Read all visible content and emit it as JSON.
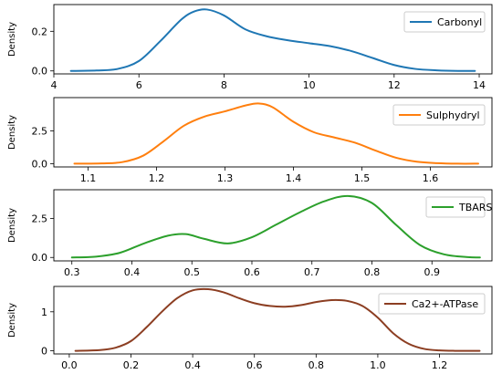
{
  "chart_data": [
    {
      "type": "line",
      "kind": "kernel density",
      "ylabel": "Density",
      "xlim": [
        4.0,
        14.3
      ],
      "ylim": [
        -0.015,
        0.335
      ],
      "xticks": [
        4,
        6,
        8,
        10,
        12,
        14
      ],
      "yticks": [
        0.0,
        0.2
      ],
      "ytick_labels": [
        "0.0",
        "0.2"
      ],
      "legend_position": "upper right",
      "series": [
        {
          "name": "Carbonyl",
          "color": "#1f77b4",
          "x": [
            4.4,
            5.0,
            5.5,
            6.0,
            6.5,
            7.0,
            7.3,
            7.6,
            8.0,
            8.5,
            9.0,
            9.5,
            10.0,
            10.5,
            11.0,
            11.5,
            12.0,
            12.5,
            13.0,
            13.5,
            13.9
          ],
          "y": [
            0.0,
            0.002,
            0.01,
            0.05,
            0.15,
            0.26,
            0.3,
            0.31,
            0.28,
            0.21,
            0.175,
            0.155,
            0.14,
            0.125,
            0.1,
            0.065,
            0.03,
            0.01,
            0.003,
            0.0,
            0.0
          ]
        }
      ]
    },
    {
      "type": "line",
      "kind": "kernel density",
      "ylabel": "Density",
      "xlim": [
        1.05,
        1.69
      ],
      "ylim": [
        -0.25,
        5.05
      ],
      "xticks": [
        1.1,
        1.2,
        1.3,
        1.4,
        1.5,
        1.6
      ],
      "yticks": [
        0.0,
        2.5
      ],
      "ytick_labels": [
        "0.0",
        "2.5"
      ],
      "legend_position": "upper right",
      "series": [
        {
          "name": "Sulphydryl",
          "color": "#ff7f0e",
          "x": [
            1.08,
            1.12,
            1.15,
            1.18,
            1.21,
            1.24,
            1.27,
            1.3,
            1.33,
            1.35,
            1.37,
            1.4,
            1.43,
            1.46,
            1.49,
            1.52,
            1.55,
            1.58,
            1.61,
            1.64,
            1.67
          ],
          "y": [
            0.0,
            0.02,
            0.12,
            0.6,
            1.7,
            2.9,
            3.6,
            4.0,
            4.45,
            4.6,
            4.3,
            3.2,
            2.4,
            2.0,
            1.6,
            1.0,
            0.45,
            0.15,
            0.04,
            0.0,
            0.0
          ]
        }
      ]
    },
    {
      "type": "line",
      "kind": "kernel density",
      "ylabel": "Density",
      "xlim": [
        0.27,
        1.0
      ],
      "ylim": [
        -0.22,
        4.35
      ],
      "xticks": [
        0.3,
        0.4,
        0.5,
        0.6,
        0.7,
        0.8,
        0.9
      ],
      "yticks": [
        0.0,
        2.5
      ],
      "ytick_labels": [
        "0.0",
        "2.5"
      ],
      "legend_position": "upper right",
      "series": [
        {
          "name": "TBARS",
          "color": "#2ca02c",
          "x": [
            0.3,
            0.34,
            0.38,
            0.42,
            0.46,
            0.49,
            0.52,
            0.56,
            0.6,
            0.64,
            0.68,
            0.72,
            0.76,
            0.8,
            0.84,
            0.88,
            0.92,
            0.96,
            0.98
          ],
          "y": [
            0.0,
            0.05,
            0.3,
            0.9,
            1.4,
            1.5,
            1.2,
            0.9,
            1.3,
            2.1,
            2.9,
            3.6,
            3.95,
            3.5,
            2.1,
            0.8,
            0.2,
            0.02,
            0.0
          ]
        }
      ]
    },
    {
      "type": "line",
      "kind": "kernel density",
      "ylabel": "Density",
      "xlim": [
        -0.05,
        1.37
      ],
      "ylim": [
        -0.08,
        1.65
      ],
      "xticks": [
        0.0,
        0.2,
        0.4,
        0.6,
        0.8,
        1.0,
        1.2
      ],
      "yticks": [
        0,
        1
      ],
      "ytick_labels": [
        "0",
        "1"
      ],
      "legend_position": "upper right",
      "series": [
        {
          "name": "Ca2+-ATPase",
          "color": "#8c3e22",
          "x": [
            0.02,
            0.1,
            0.15,
            0.2,
            0.25,
            0.3,
            0.35,
            0.4,
            0.45,
            0.5,
            0.55,
            0.6,
            0.65,
            0.7,
            0.75,
            0.8,
            0.85,
            0.9,
            0.95,
            1.0,
            1.05,
            1.1,
            1.15,
            1.2,
            1.25,
            1.33
          ],
          "y": [
            0.0,
            0.02,
            0.08,
            0.25,
            0.6,
            1.0,
            1.35,
            1.55,
            1.58,
            1.5,
            1.35,
            1.22,
            1.15,
            1.13,
            1.17,
            1.25,
            1.3,
            1.28,
            1.15,
            0.85,
            0.45,
            0.18,
            0.05,
            0.01,
            0.0,
            0.0
          ]
        }
      ]
    }
  ]
}
